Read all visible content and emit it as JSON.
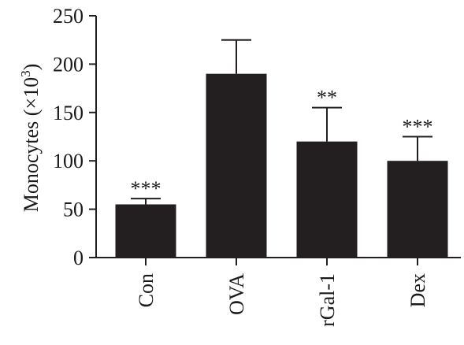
{
  "chart_data": {
    "type": "bar",
    "title": "",
    "xlabel": "",
    "ylabel": "Monocytes (×10",
    "ylabel_superscript": "3",
    "ylabel_suffix": ")",
    "ylim": [
      0,
      250
    ],
    "yticks": [
      "0",
      "50",
      "100",
      "150",
      "200",
      "250"
    ],
    "categories": [
      "Con",
      "OVA",
      "rGal-1",
      "Dex"
    ],
    "values": [
      55,
      190,
      120,
      100
    ],
    "errors": [
      6,
      35,
      35,
      25
    ],
    "significance": [
      "***",
      "",
      "**",
      "***"
    ],
    "bar_color": "#231f20",
    "grid": false
  }
}
